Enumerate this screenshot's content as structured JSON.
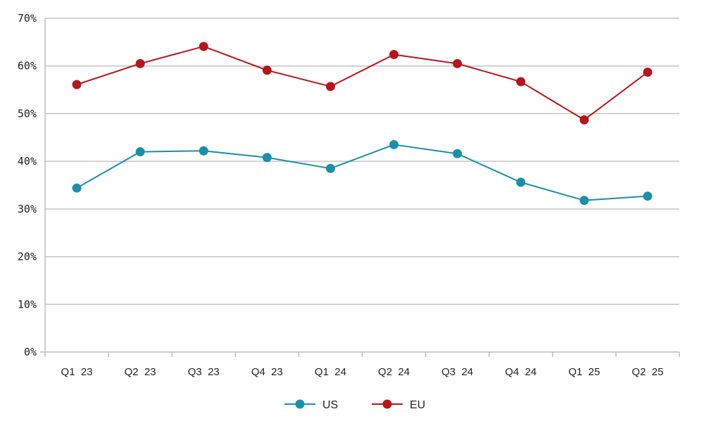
{
  "chart_data": {
    "type": "line",
    "title": "",
    "xlabel": "",
    "ylabel": "",
    "categories": [
      "Q1  23",
      "Q2  23",
      "Q3  23",
      "Q4  23",
      "Q1  24",
      "Q2  24",
      "Q3  24",
      "Q4  24",
      "Q1  25",
      "Q2  25"
    ],
    "ylim": [
      0,
      70
    ],
    "yticks": [
      0,
      10,
      20,
      30,
      40,
      50,
      60,
      70
    ],
    "ytick_labels": [
      "0%",
      "10%",
      "20%",
      "30%",
      "40%",
      "50%",
      "60%",
      "70%"
    ],
    "grid": "horizontal",
    "legend": "bottom-center",
    "series": [
      {
        "name": "US",
        "color": "#1a8fab",
        "values": [
          34.4,
          42.0,
          42.2,
          40.8,
          38.5,
          43.5,
          41.6,
          35.6,
          31.8,
          32.7
        ]
      },
      {
        "name": "EU",
        "color": "#b5161c",
        "values": [
          56.1,
          60.5,
          64.1,
          59.1,
          55.7,
          62.4,
          60.5,
          56.7,
          48.7,
          58.7
        ]
      }
    ]
  }
}
